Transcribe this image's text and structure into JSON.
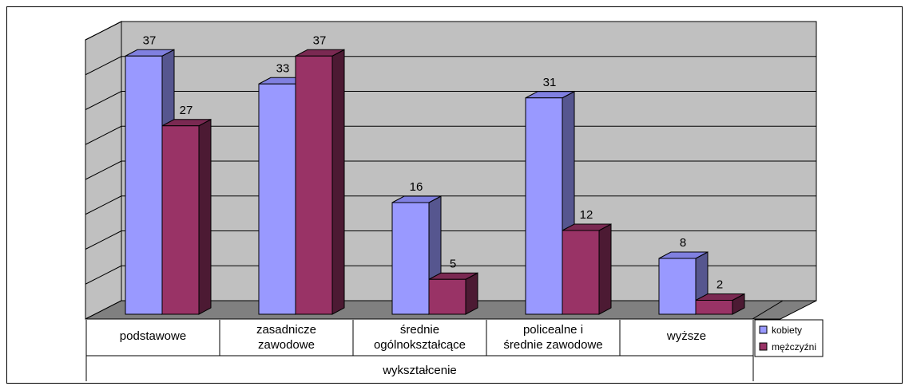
{
  "chart_data": {
    "type": "bar",
    "categories": [
      [
        "podstawowe"
      ],
      [
        "zasadnicze",
        "zawodowe"
      ],
      [
        "średnie",
        "ogólnokształcące"
      ],
      [
        "policealne i",
        "średnie zawodowe"
      ],
      [
        "wyższe"
      ]
    ],
    "series": [
      {
        "name": "kobiety",
        "values": [
          37,
          33,
          16,
          31,
          8
        ],
        "color": "#9999ff",
        "side_color": "#56568f",
        "top_color": "#8080e0"
      },
      {
        "name": "mężczyźni",
        "values": [
          27,
          37,
          5,
          12,
          2
        ],
        "color": "#993366",
        "side_color": "#4c1a33",
        "top_color": "#7a2952"
      }
    ],
    "xlabel": "wykształcenie",
    "ylim": [
      0,
      40
    ],
    "grid": true,
    "legend_position": "right",
    "colors": {
      "wall": "#c0c0c0",
      "floor": "#808080",
      "side_wall": "#c0c0c0",
      "grid": "#000000"
    }
  }
}
